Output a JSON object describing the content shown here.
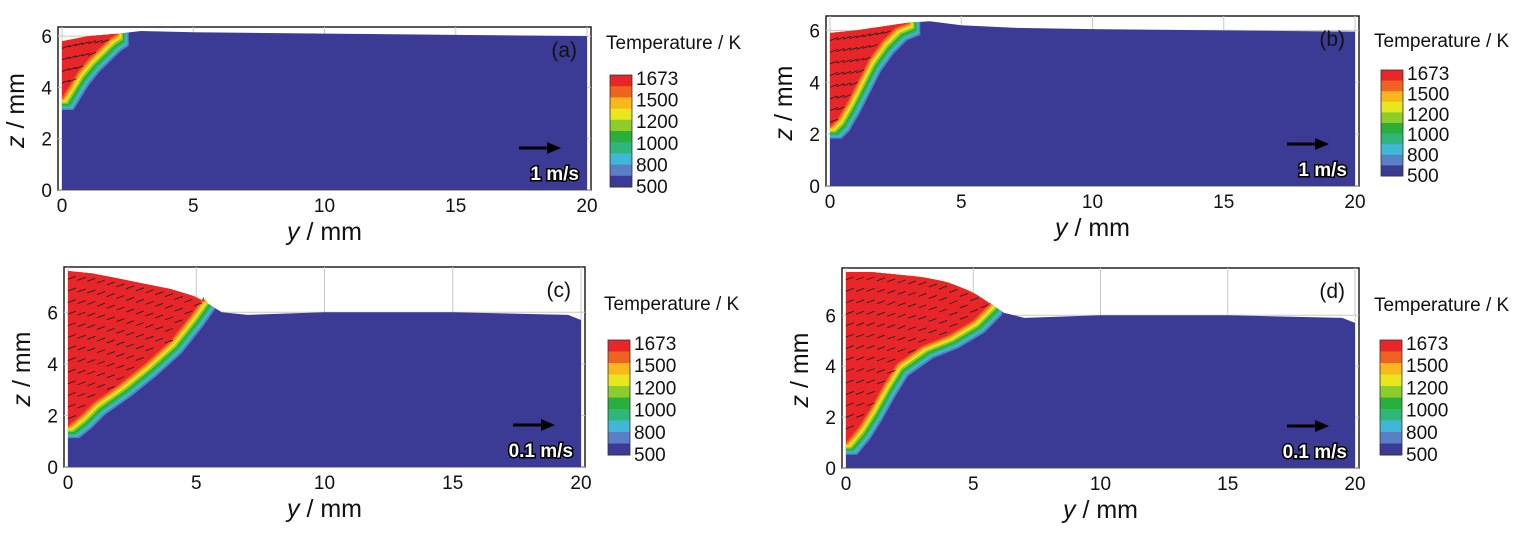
{
  "chart_data": [
    {
      "type": "heatmap",
      "panel_label": "(a)",
      "xlabel_var": "y",
      "xlabel_unit": " / mm",
      "ylabel_var": "z",
      "ylabel_unit": " / mm",
      "x_ticks": [
        "0",
        "5",
        "10",
        "15",
        "20"
      ],
      "y_ticks": [
        "0",
        "2",
        "4",
        "6"
      ],
      "xlim": [
        0,
        20
      ],
      "ylim": [
        0,
        6.2
      ],
      "colorbar": {
        "title": "Temperature / K",
        "ticks": [
          "1673",
          "1500",
          "1200",
          "1000",
          "800",
          "500"
        ],
        "range": [
          500,
          1673
        ]
      },
      "vector_reference": "1 m/s",
      "surface": {
        "y": [
          0,
          0.5,
          1.0,
          1.6,
          2.2,
          3.0,
          5,
          10,
          15,
          20
        ],
        "z": [
          5.8,
          5.9,
          6.0,
          6.05,
          6.1,
          6.2,
          6.15,
          6.1,
          6.05,
          6.0
        ]
      },
      "melt_boundary": {
        "y": [
          0,
          0.3,
          0.6,
          1.0,
          1.4,
          1.8,
          2.1
        ],
        "z": [
          3.6,
          4.1,
          4.6,
          5.1,
          5.5,
          5.9,
          6.1
        ]
      },
      "grid": true,
      "colormap": "jet"
    },
    {
      "type": "heatmap",
      "panel_label": "(b)",
      "xlabel_var": "y",
      "xlabel_unit": " / mm",
      "ylabel_var": "z",
      "ylabel_unit": " / mm",
      "x_ticks": [
        "0",
        "5",
        "10",
        "15",
        "20"
      ],
      "y_ticks": [
        "0",
        "2",
        "4",
        "6"
      ],
      "xlim": [
        0,
        20
      ],
      "ylim": [
        0,
        6.4
      ],
      "colorbar": {
        "title": "Temperature / K",
        "ticks": [
          "1673",
          "1500",
          "1200",
          "1000",
          "800",
          "500"
        ],
        "range": [
          500,
          1673
        ]
      },
      "vector_reference": "1 m/s",
      "surface": {
        "y": [
          0,
          1,
          2,
          3,
          3.8,
          5,
          7,
          10,
          15,
          20
        ],
        "z": [
          5.9,
          6.0,
          6.15,
          6.3,
          6.35,
          6.2,
          6.1,
          6.05,
          6.0,
          5.95
        ]
      },
      "melt_boundary": {
        "y": [
          0,
          0.3,
          0.7,
          1.1,
          1.5,
          2.0,
          2.5,
          3.0
        ],
        "z": [
          2.3,
          2.6,
          3.3,
          4.1,
          4.9,
          5.6,
          6.1,
          6.3
        ]
      },
      "grid": true,
      "colormap": "jet"
    },
    {
      "type": "heatmap",
      "panel_label": "(c)",
      "xlabel_var": "y",
      "xlabel_unit": " / mm",
      "ylabel_var": "z",
      "ylabel_unit": " / mm",
      "x_ticks": [
        "0",
        "5",
        "10",
        "15",
        "20"
      ],
      "y_ticks": [
        "0",
        "2",
        "4",
        "6"
      ],
      "xlim": [
        0,
        20
      ],
      "ylim": [
        0,
        7.6
      ],
      "colorbar": {
        "title": "Temperature / K",
        "ticks": [
          "1673",
          "1500",
          "1200",
          "1000",
          "800",
          "500"
        ],
        "range": [
          500,
          1673
        ]
      },
      "vector_reference": "0.1 m/s",
      "surface": {
        "y": [
          0,
          1,
          2,
          3,
          4,
          5,
          5.5,
          6,
          7,
          10,
          15,
          19.5,
          20
        ],
        "z": [
          7.6,
          7.5,
          7.3,
          7.1,
          6.9,
          6.6,
          6.3,
          6.0,
          5.9,
          6.0,
          6.0,
          5.9,
          5.7
        ]
      },
      "melt_boundary": {
        "y": [
          0,
          0.5,
          1,
          2,
          3,
          4,
          4.8,
          5.3
        ],
        "z": [
          1.6,
          2.0,
          2.5,
          3.2,
          4.0,
          4.9,
          5.9,
          6.6
        ]
      },
      "grid": true,
      "colormap": "jet"
    },
    {
      "type": "heatmap",
      "panel_label": "(d)",
      "xlabel_var": "y",
      "xlabel_unit": " / mm",
      "ylabel_var": "z",
      "ylabel_unit": " / mm",
      "x_ticks": [
        "0",
        "5",
        "10",
        "15",
        "20"
      ],
      "y_ticks": [
        "0",
        "2",
        "4",
        "6"
      ],
      "xlim": [
        0,
        20
      ],
      "ylim": [
        0,
        7.7
      ],
      "colorbar": {
        "title": "Temperature / K",
        "ticks": [
          "1673",
          "1500",
          "1200",
          "1000",
          "800",
          "500"
        ],
        "range": [
          500,
          1673
        ]
      },
      "vector_reference": "0.1 m/s",
      "surface": {
        "y": [
          0,
          1,
          2,
          3,
          4,
          5,
          5.6,
          6.2,
          7,
          10,
          15,
          19.5,
          20
        ],
        "z": [
          7.7,
          7.7,
          7.6,
          7.5,
          7.3,
          6.9,
          6.5,
          6.1,
          5.9,
          6.0,
          6.0,
          5.9,
          5.7
        ]
      },
      "melt_boundary": {
        "y": [
          0,
          0.5,
          1,
          1.5,
          2.0,
          3,
          4,
          5,
          5.7
        ],
        "z": [
          1.0,
          1.6,
          2.4,
          3.3,
          4.1,
          4.8,
          5.2,
          5.8,
          6.5
        ]
      },
      "grid": true,
      "colormap": "jet"
    }
  ],
  "colors": {
    "base": "#3b3b95",
    "hot": "#e8262a",
    "scale": [
      "#e8262a",
      "#f0621f",
      "#f8b81c",
      "#e9e61c",
      "#8ccd2c",
      "#2aae3c",
      "#2fb77a",
      "#3fb8d8",
      "#5a7fc6",
      "#3b3b95"
    ]
  }
}
